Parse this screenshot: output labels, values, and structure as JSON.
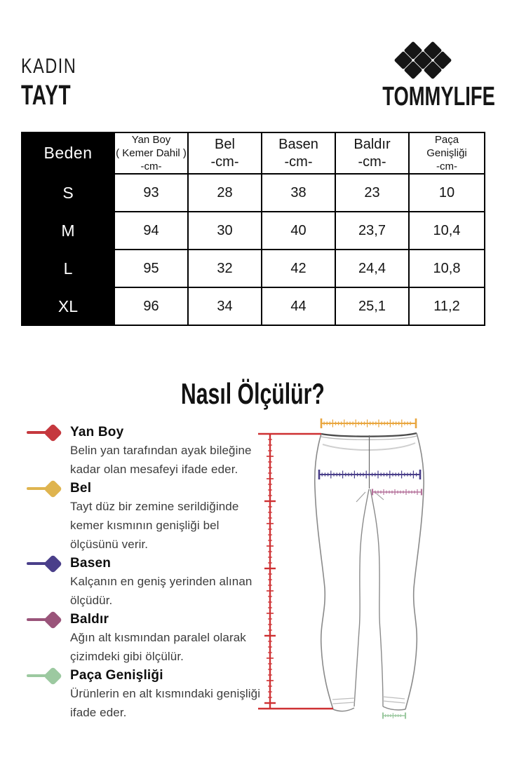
{
  "header": {
    "category_label": "KADIN",
    "product_label": "TAYT",
    "brand_name": "TOMMYLIFE"
  },
  "size_table": {
    "size_column_header": "Beden",
    "measure_columns": [
      {
        "lines": [
          "Yan Boy",
          "( Kemer Dahil )",
          "-cm-"
        ],
        "small": true
      },
      {
        "lines": [
          "Bel",
          "-cm-"
        ],
        "small": false
      },
      {
        "lines": [
          "Basen",
          "-cm-"
        ],
        "small": false
      },
      {
        "lines": [
          "Baldır",
          "-cm-"
        ],
        "small": false
      },
      {
        "lines": [
          "Paça",
          "Genişliği",
          "-cm-"
        ],
        "small": true
      }
    ],
    "rows": [
      {
        "size": "S",
        "values": [
          "93",
          "28",
          "38",
          "23",
          "10"
        ]
      },
      {
        "size": "M",
        "values": [
          "94",
          "30",
          "40",
          "23,7",
          "10,4"
        ]
      },
      {
        "size": "L",
        "values": [
          "95",
          "32",
          "42",
          "24,4",
          "10,8"
        ]
      },
      {
        "size": "XL",
        "values": [
          "96",
          "34",
          "44",
          "25,1",
          "11,2"
        ]
      }
    ]
  },
  "how_to_measure": {
    "title": "Nasıl Ölçülür?",
    "legend": [
      {
        "name": "Yan Boy",
        "slug": "yan-boy",
        "color": "#C5383E",
        "description": "Belin yan tarafından ayak bileğine kadar olan mesafeyi ifade eder."
      },
      {
        "name": "Bel",
        "slug": "bel",
        "color": "#DFB44F",
        "description": "Tayt düz bir zemine serildiğinde kemer kısmının genişliği bel ölçüsünü verir."
      },
      {
        "name": "Basen",
        "slug": "basen",
        "color": "#4A3F8A",
        "description": "Kalçanın en geniş yerinden alınan ölçüdür."
      },
      {
        "name": "Baldır",
        "slug": "baldir",
        "color": "#9A547A",
        "description": "Ağın alt kısmından paralel olarak çizimdeki gibi ölçülür."
      },
      {
        "name": "Paça Genişliği",
        "slug": "paca-genisligi",
        "color": "#9CC9A0",
        "description": "Ürünlerin en alt kısmındaki genişliği ifade eder."
      }
    ]
  },
  "figure": {
    "ruler_colors": {
      "yan_boy": "#CE3032",
      "bel": "#E9A63F",
      "basen": "#4A3F8A",
      "baldir": "#B5729B",
      "paca_genisligi": "#9CC9A0"
    }
  }
}
